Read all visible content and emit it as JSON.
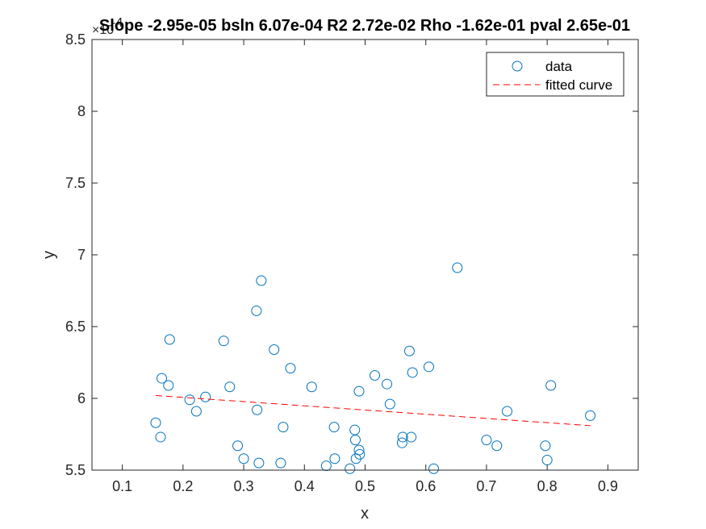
{
  "chart_data": {
    "type": "scatter",
    "title": "Slope -2.95e-05 bsln 6.07e-04 R2 2.72e-02 Rho -1.62e-01 pval 2.65e-01",
    "xlabel": "x",
    "ylabel": "y",
    "y_exponent_label": "×10",
    "y_exponent_power": "-4",
    "xlim": [
      0.05,
      0.95
    ],
    "ylim": [
      5.5,
      8.5
    ],
    "x_ticks": [
      0.1,
      0.2,
      0.3,
      0.4,
      0.5,
      0.6,
      0.7,
      0.8,
      0.9
    ],
    "x_tick_labels": [
      "0.1",
      "0.2",
      "0.3",
      "0.4",
      "0.5",
      "0.6",
      "0.7",
      "0.8",
      "0.9"
    ],
    "y_ticks": [
      5.5,
      6,
      6.5,
      7,
      7.5,
      8,
      8.5
    ],
    "y_tick_labels": [
      "5.5",
      "6",
      "6.5",
      "7",
      "7.5",
      "8",
      "8.5"
    ],
    "grid": false,
    "legend_position": "top-right",
    "legend": [
      "data",
      "fitted curve"
    ],
    "colors": {
      "data": "#0072BD",
      "fit": "#FF0000",
      "axes": "#262626"
    },
    "series": [
      {
        "name": "data",
        "style": "open-circle",
        "points": [
          [
            0.155,
            5.83
          ],
          [
            0.163,
            5.73
          ],
          [
            0.165,
            6.14
          ],
          [
            0.176,
            6.09
          ],
          [
            0.178,
            6.41
          ],
          [
            0.211,
            5.99
          ],
          [
            0.222,
            5.91
          ],
          [
            0.237,
            6.01
          ],
          [
            0.267,
            6.4
          ],
          [
            0.277,
            6.08
          ],
          [
            0.29,
            5.67
          ],
          [
            0.3,
            5.58
          ],
          [
            0.321,
            6.61
          ],
          [
            0.322,
            5.92
          ],
          [
            0.325,
            5.55
          ],
          [
            0.329,
            6.82
          ],
          [
            0.35,
            6.34
          ],
          [
            0.361,
            5.55
          ],
          [
            0.365,
            5.8
          ],
          [
            0.377,
            6.21
          ],
          [
            0.412,
            6.08
          ],
          [
            0.436,
            5.53
          ],
          [
            0.449,
            5.8
          ],
          [
            0.45,
            5.58
          ],
          [
            0.475,
            5.51
          ],
          [
            0.483,
            5.78
          ],
          [
            0.484,
            5.71
          ],
          [
            0.485,
            5.58
          ],
          [
            0.49,
            6.05
          ],
          [
            0.49,
            5.64
          ],
          [
            0.491,
            5.61
          ],
          [
            0.516,
            6.16
          ],
          [
            0.536,
            6.1
          ],
          [
            0.541,
            5.96
          ],
          [
            0.561,
            5.69
          ],
          [
            0.562,
            5.73
          ],
          [
            0.573,
            6.33
          ],
          [
            0.576,
            5.73
          ],
          [
            0.578,
            6.18
          ],
          [
            0.605,
            6.22
          ],
          [
            0.613,
            5.51
          ],
          [
            0.652,
            6.91
          ],
          [
            0.7,
            5.71
          ],
          [
            0.717,
            5.67
          ],
          [
            0.734,
            5.91
          ],
          [
            0.797,
            5.67
          ],
          [
            0.8,
            5.57
          ],
          [
            0.806,
            6.09
          ],
          [
            0.871,
            5.88
          ]
        ]
      },
      {
        "name": "fitted curve",
        "style": "dashed-line",
        "points": [
          [
            0.155,
            6.02
          ],
          [
            0.871,
            5.81
          ]
        ]
      }
    ]
  }
}
